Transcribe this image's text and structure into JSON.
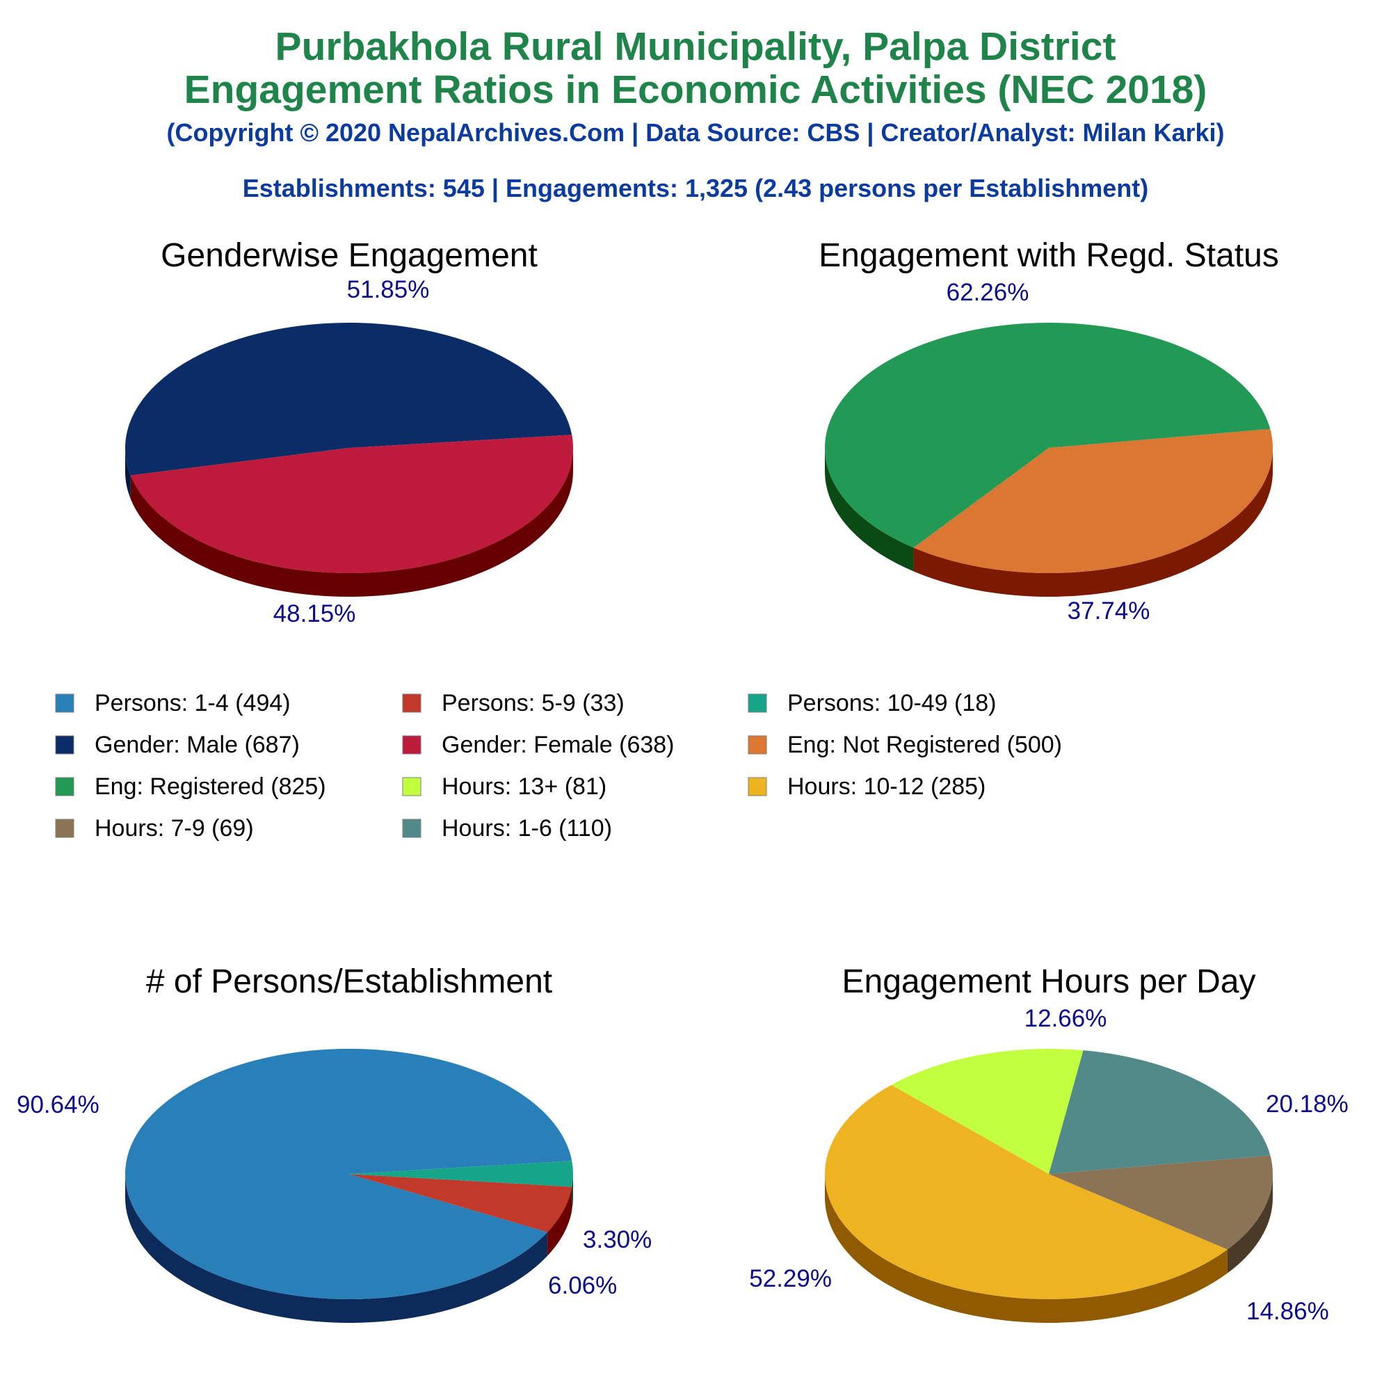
{
  "header": {
    "title_line1": "Purbakhola Rural Municipality, Palpa District",
    "title_line2": "Engagement Ratios in Economic Activities (NEC 2018)",
    "copyright": "(Copyright © 2020 NepalArchives.Com | Data Source: CBS | Creator/Analyst: Milan Karki)",
    "summary": "Establishments: 545 | Engagements: 1,325 (2.43 persons per Establishment)"
  },
  "chart_data": [
    {
      "type": "pie",
      "title": "Genderwise Engagement",
      "slices": [
        {
          "label": "Gender: Male",
          "value": 687,
          "percent_label": "51.85%",
          "color": "#0b2c66",
          "side_color": "#051a40"
        },
        {
          "label": "Gender: Female",
          "value": 638,
          "percent_label": "48.15%",
          "color": "#be1a3b",
          "side_color": "#660000"
        }
      ]
    },
    {
      "type": "pie",
      "title": "Engagement with Regd. Status",
      "slices": [
        {
          "label": "Eng: Registered",
          "value": 825,
          "percent_label": "62.26%",
          "color": "#229954",
          "side_color": "#0a4a14"
        },
        {
          "label": "Eng: Not Registered",
          "value": 500,
          "percent_label": "37.74%",
          "color": "#dc7633",
          "side_color": "#7b1a00"
        }
      ]
    },
    {
      "type": "pie",
      "title": "# of Persons/Establishment",
      "slices": [
        {
          "label": "Persons: 1-4",
          "value": 494,
          "percent_label": "90.64%",
          "color": "#2980b9",
          "side_color": "#0d2b5a"
        },
        {
          "label": "Persons: 5-9",
          "value": 33,
          "percent_label": "6.06%",
          "color": "#c0392b",
          "side_color": "#6b0000"
        },
        {
          "label": "Persons: 10-49",
          "value": 18,
          "percent_label": "3.30%",
          "color": "#17a589",
          "side_color": "#083d2e"
        }
      ]
    },
    {
      "type": "pie",
      "title": "Engagement Hours per Day",
      "slices": [
        {
          "label": "Hours: 1-6",
          "value": 110,
          "percent_label": "20.18%",
          "color": "#528a8a",
          "side_color": "#2a4a4a"
        },
        {
          "label": "Hours: 13+",
          "value": 81,
          "percent_label": "14.86%",
          "color": "#c2ff3f",
          "side_color": "#6aa000"
        },
        {
          "label": "Hours: 10-12",
          "value": 285,
          "percent_label": "52.29%",
          "color": "#edb321",
          "side_color": "#8f5a00"
        },
        {
          "label": "Hours: 7-9",
          "value": 69,
          "percent_label": "12.66%",
          "color": "#8b7355",
          "side_color": "#4a3a28"
        }
      ]
    }
  ],
  "legend": {
    "items": [
      {
        "text": "Persons: 1-4 (494)",
        "color": "#2980b9"
      },
      {
        "text": "Persons: 5-9 (33)",
        "color": "#c0392b"
      },
      {
        "text": "Persons: 10-49 (18)",
        "color": "#17a589"
      },
      {
        "text": "Gender: Male (687)",
        "color": "#0b2c66"
      },
      {
        "text": "Gender: Female (638)",
        "color": "#be1a3b"
      },
      {
        "text": "Eng: Not Registered (500)",
        "color": "#dc7633"
      },
      {
        "text": "Eng: Registered (825)",
        "color": "#229954"
      },
      {
        "text": "Hours: 13+ (81)",
        "color": "#c2ff3f"
      },
      {
        "text": "Hours: 10-12 (285)",
        "color": "#edb321"
      },
      {
        "text": "Hours: 7-9 (69)",
        "color": "#8b7355"
      },
      {
        "text": "Hours: 1-6 (110)",
        "color": "#528a8a"
      }
    ]
  }
}
